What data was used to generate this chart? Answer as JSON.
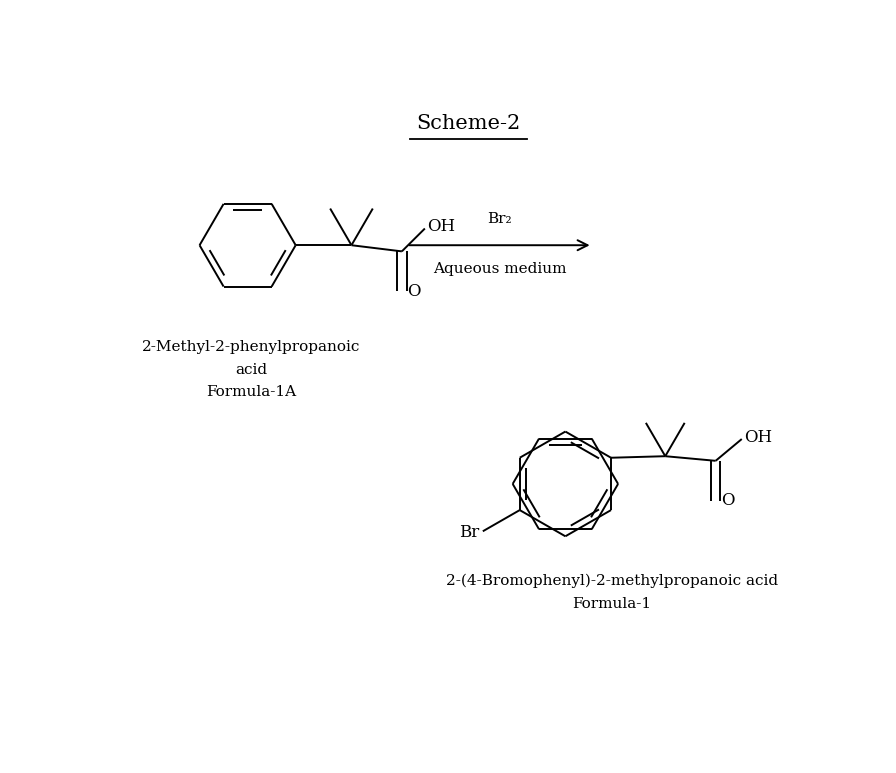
{
  "title": "Scheme-2",
  "title_underline": true,
  "bg_color": "#ffffff",
  "text_color": "#000000",
  "line_color": "#000000",
  "reactant_label_line1": "2-Methyl-2-phenylpropanoic",
  "reactant_label_line2": "acid",
  "reactant_label_line3": "Formula-1A",
  "product_label_line1": "2-(4-Bromophenyl)-2-methylpropanoic acid",
  "product_label_line2": "Formula-1",
  "arrow_label_top": "Br₂",
  "arrow_label_bottom": "Aqueous medium",
  "font_size_title": 15,
  "font_size_labels": 11,
  "font_size_atoms": 12,
  "font_size_arrow": 11
}
